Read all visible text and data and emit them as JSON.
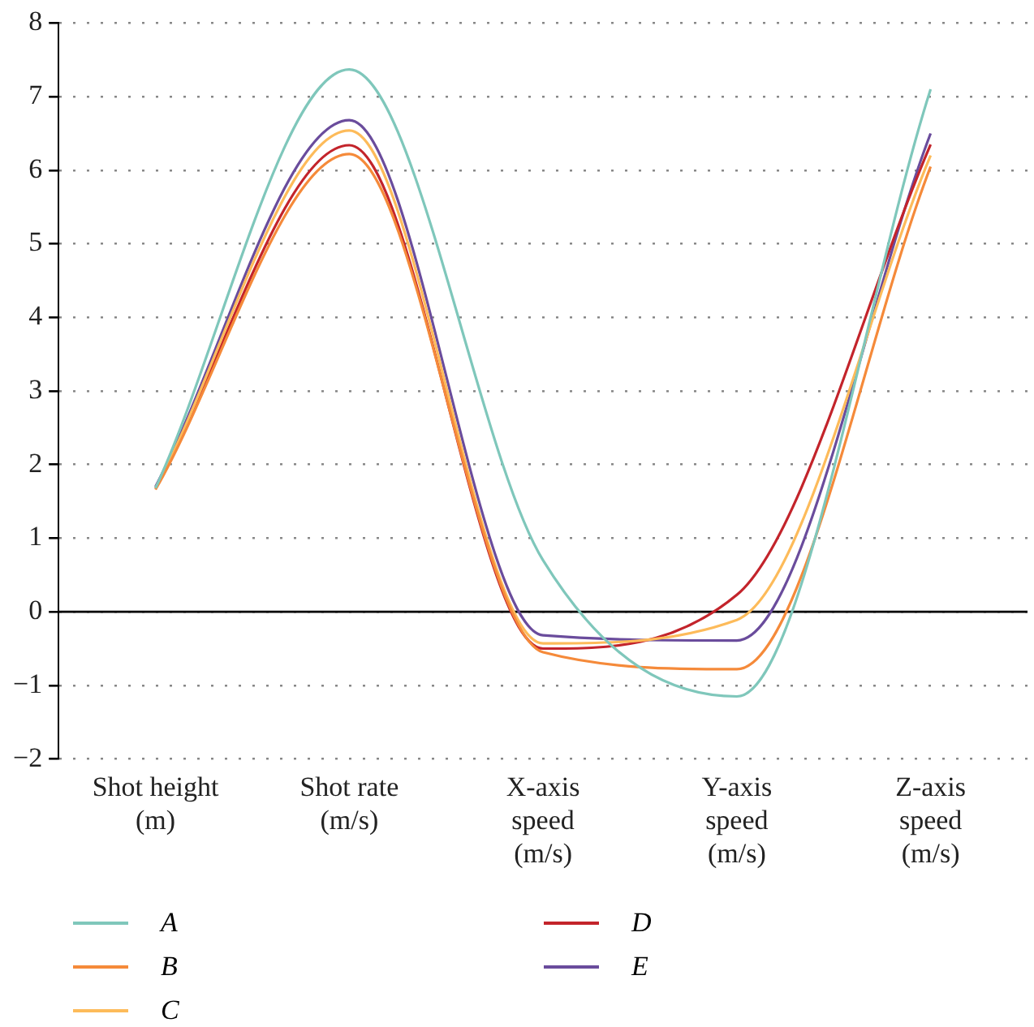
{
  "chart_data": {
    "type": "line",
    "categories": [
      "Shot height\n(m)",
      "Shot rate\n(m/s)",
      "X-axis\nspeed\n(m/s)",
      "Y-axis\nspeed\n(m/s)",
      "Z-axis\nspeed\n(m/s)"
    ],
    "series": [
      {
        "name": "A",
        "color": "#7fc7bb",
        "values": [
          1.68,
          7.37,
          0.7,
          -1.15,
          7.1
        ]
      },
      {
        "name": "B",
        "color": "#f58a3a",
        "values": [
          1.66,
          6.22,
          -0.55,
          -0.78,
          6.05
        ]
      },
      {
        "name": "C",
        "color": "#fdbb5a",
        "values": [
          1.68,
          6.54,
          -0.43,
          -0.11,
          6.2
        ]
      },
      {
        "name": "D",
        "color": "#c3242b",
        "values": [
          1.68,
          6.34,
          -0.5,
          0.23,
          6.35
        ]
      },
      {
        "name": "E",
        "color": "#6a4c9c",
        "values": [
          1.7,
          6.68,
          -0.32,
          -0.39,
          6.5
        ]
      }
    ],
    "ylim": [
      -2,
      8
    ],
    "yticks": [
      -2,
      -1,
      0,
      1,
      2,
      3,
      4,
      5,
      6,
      7,
      8
    ],
    "grid": "y",
    "legend": "bottom",
    "marker": "none",
    "line_style": "solid"
  }
}
